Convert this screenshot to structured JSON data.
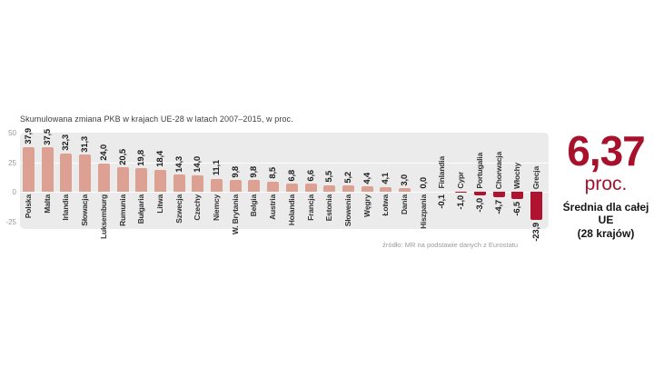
{
  "title": "Skumulowana zmiana PKB w krajach UE-28 w latach 2007–2015, w proc.",
  "source": "źródło: MR na podstawie danych z Eurostatu",
  "stat": {
    "value": "6,37",
    "unit": "proc.",
    "caption_line1": "Średnia dla całej UE",
    "caption_line2": "(28 krajów)"
  },
  "colors": {
    "positive_bar": "#dca192",
    "negative_bar": "#b01330",
    "accent": "#a8112b",
    "panel_bg": "#ebebeb"
  },
  "chart_data": {
    "type": "bar",
    "title": "Skumulowana zmiana PKB w krajach UE-28 w latach 2007–2015, w proc.",
    "categories": [
      "Polska",
      "Malta",
      "Irlandia",
      "Słowacja",
      "Luksemburg",
      "Rumunia",
      "Bułgaria",
      "Litwa",
      "Szwecja",
      "Czechy",
      "Niemcy",
      "W. Brytania",
      "Belgia",
      "Austria",
      "Holandia",
      "Francja",
      "Estonia",
      "Słowenia",
      "Węgry",
      "Łotwa",
      "Dania",
      "Hiszpania",
      "Finlandia",
      "Cypr",
      "Portugalia",
      "Chorwacja",
      "Włochy",
      "Grecja"
    ],
    "values": [
      37.9,
      37.5,
      32.3,
      31.3,
      24.0,
      20.5,
      19.8,
      18.4,
      14.3,
      14.0,
      11.1,
      9.8,
      9.8,
      8.5,
      6.8,
      6.6,
      5.5,
      5.2,
      4.4,
      4.1,
      3.0,
      0.0,
      -0.1,
      -1.0,
      -3.0,
      -4.7,
      -6.5,
      -23.9
    ],
    "value_labels": [
      "37,9",
      "37,5",
      "32,3",
      "31,3",
      "24,0",
      "20,5",
      "19,8",
      "18,4",
      "14,3",
      "14,0",
      "11,1",
      "9,8",
      "9,8",
      "8,5",
      "6,8",
      "6,6",
      "5,5",
      "5,2",
      "4,4",
      "4,1",
      "3,0",
      "0,0",
      "-0,1",
      "-1,0",
      "-3,0",
      "-4,7",
      "-6,5",
      "-23,9"
    ],
    "xlabel": "",
    "ylabel": "",
    "ylim": [
      -25,
      50
    ],
    "yticks": [
      50,
      25,
      0,
      -25
    ],
    "ytick_labels": [
      "50",
      "25",
      "0",
      "-25"
    ],
    "grid": true,
    "legend": false
  }
}
